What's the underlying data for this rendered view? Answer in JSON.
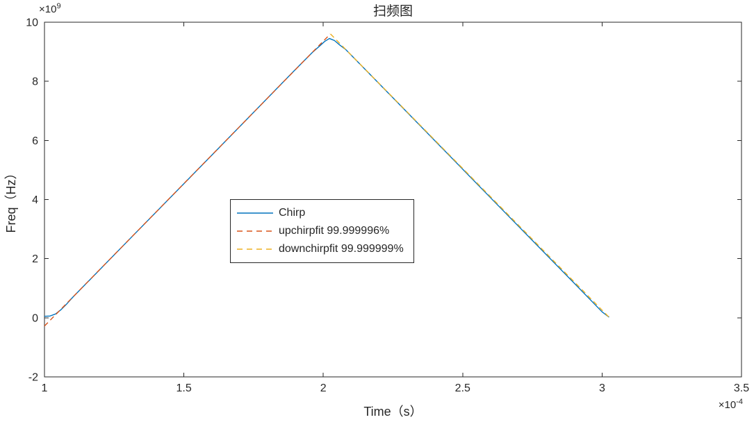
{
  "figure": {
    "title": "扫频图",
    "xlabel": "Time（s）",
    "ylabel": "Freq（Hz）",
    "x_multiplier": {
      "base": "×10",
      "exponent": "-4"
    },
    "y_multiplier": {
      "base": "×10",
      "exponent": "9"
    },
    "axis_color": "#262626",
    "background_color": "#ffffff"
  },
  "chart_data": {
    "type": "line",
    "title": "扫频图",
    "xlabel": "Time（s）",
    "ylabel": "Freq（Hz）",
    "x_units": "×10^-4 s",
    "y_units": "×10^9 Hz",
    "xlim": [
      1,
      3.5
    ],
    "ylim": [
      -2,
      10
    ],
    "x_ticks": [
      1,
      1.5,
      2,
      2.5,
      3,
      3.5
    ],
    "y_ticks": [
      -2,
      0,
      2,
      4,
      6,
      8,
      10
    ],
    "grid": false,
    "legend": {
      "position": "inside-center-left",
      "border": true
    },
    "series": [
      {
        "name": "Chirp",
        "color": "#0072BD",
        "line_style": "solid",
        "points": [
          [
            1.0,
            0.05
          ],
          [
            1.02,
            0.06
          ],
          [
            1.04,
            0.13
          ],
          [
            1.06,
            0.28
          ],
          [
            1.08,
            0.47
          ],
          [
            1.1,
            0.68
          ],
          [
            1.3,
            2.61
          ],
          [
            1.6,
            5.5
          ],
          [
            1.9,
            8.4
          ],
          [
            1.96,
            8.97
          ],
          [
            1.99,
            9.22
          ],
          [
            2.005,
            9.35
          ],
          [
            2.022,
            9.45
          ],
          [
            2.04,
            9.38
          ],
          [
            2.06,
            9.22
          ],
          [
            2.08,
            9.08
          ],
          [
            2.3,
            6.96
          ],
          [
            2.6,
            4.06
          ],
          [
            2.9,
            1.17
          ],
          [
            3.0,
            0.2
          ],
          [
            3.025,
            0.02
          ]
        ]
      },
      {
        "name": "upchirpfit 99.999996%",
        "color": "#D95319",
        "line_style": "dashed",
        "points": [
          [
            1.0,
            -0.28
          ],
          [
            2.025,
            9.6
          ]
        ]
      },
      {
        "name": "downchirpfit 99.999999%",
        "color": "#EDB120",
        "line_style": "dashed",
        "points": [
          [
            2.026,
            9.6
          ],
          [
            3.03,
            -0.03
          ]
        ]
      }
    ]
  }
}
